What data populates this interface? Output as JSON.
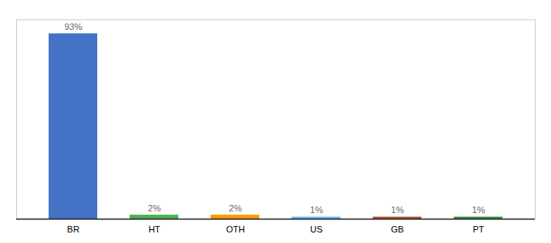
{
  "chart_data": {
    "type": "bar",
    "categories": [
      "BR",
      "HT",
      "OTH",
      "US",
      "GB",
      "PT"
    ],
    "values": [
      93,
      2,
      2,
      1,
      1,
      1
    ],
    "value_labels": [
      "93%",
      "2%",
      "2%",
      "1%",
      "1%",
      "1%"
    ],
    "colors": [
      "#4472c4",
      "#4caf50",
      "#ff9800",
      "#64b5f6",
      "#b05030",
      "#388e3c"
    ],
    "ylim": [
      0,
      100
    ],
    "grid": false,
    "data_labels": true,
    "tick_labels": "x"
  }
}
